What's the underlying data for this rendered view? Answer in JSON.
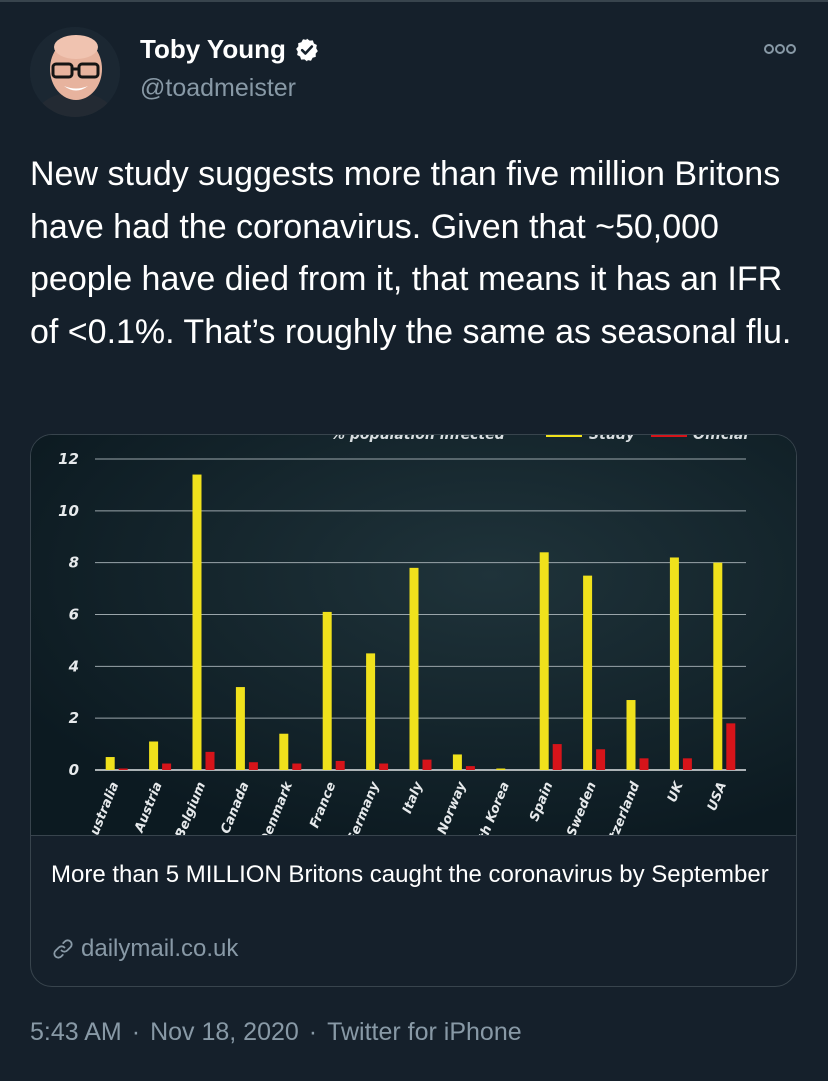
{
  "tweet": {
    "author_name": "Toby Young",
    "author_handle": "@toadmeister",
    "verified": true,
    "avatar_icon": "profile-photo",
    "more_icon": "more-options-icon",
    "text": "New study suggests more than five million Britons have had the coronavirus. Given that ~50,000 people have died from it, that means it has an IFR of <0.1%. That’s roughly the same as seasonal flu.",
    "time": "5:43 AM",
    "date": "Nov 18, 2020",
    "source": "Twitter for iPhone",
    "separator": "·"
  },
  "card": {
    "title": "More than 5 MILLION Britons caught the coronavirus by September",
    "domain": "dailymail.co.uk",
    "link_icon": "link-icon"
  },
  "chart_data": {
    "type": "bar",
    "categories": [
      "Australia",
      "Austria",
      "Belgium",
      "Canada",
      "Denmark",
      "France",
      "Germany",
      "Italy",
      "Norway",
      "South Korea",
      "Spain",
      "Sweden",
      "Switzerland",
      "UK",
      "USA"
    ],
    "category_labels_visible": [
      "Australia",
      "Austria",
      "Belgium",
      "Canada",
      "Denmark",
      "France",
      "Germany",
      "Italy",
      "Norway",
      "uth Korea",
      "Spain",
      "Sweden",
      "itzerland",
      "UK",
      "USA"
    ],
    "series": [
      {
        "name": "Study",
        "color": "#f0e11c",
        "values": [
          0.5,
          1.1,
          11.4,
          3.2,
          1.4,
          6.1,
          4.5,
          7.8,
          0.6,
          0.05,
          8.4,
          7.5,
          2.7,
          8.2,
          8.0
        ]
      },
      {
        "name": "Official",
        "color": "#d6141a",
        "values": [
          0.05,
          0.25,
          0.7,
          0.3,
          0.25,
          0.35,
          0.25,
          0.4,
          0.15,
          0.0,
          1.0,
          0.8,
          0.45,
          0.45,
          1.8
        ]
      }
    ],
    "legend_title": "% population infected",
    "yticks": [
      0,
      2,
      4,
      6,
      8,
      10,
      12
    ],
    "ylim": [
      0,
      12
    ],
    "grid": true,
    "legend_position": "top (cropped)"
  }
}
